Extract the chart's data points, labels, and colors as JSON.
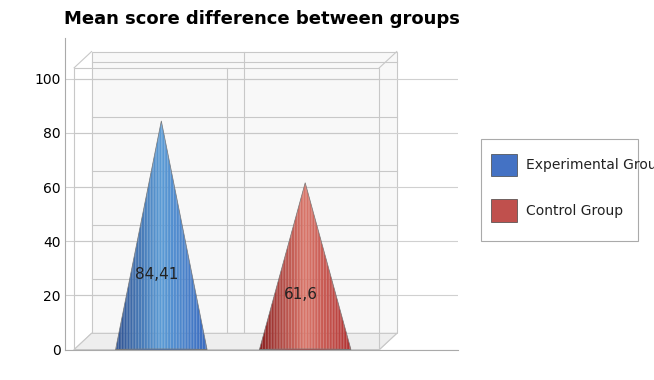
{
  "title": "Mean score difference between groups",
  "title_fontsize": 13,
  "title_fontweight": "bold",
  "categories": [
    "Experimental Group",
    "Control Group"
  ],
  "values": [
    84.41,
    61.6
  ],
  "labels": [
    "84,41",
    "61,6"
  ],
  "blue_left": "#3a6abf",
  "blue_center": "#5b9bd5",
  "blue_right": "#2e5090",
  "blue_base": "#4472b8",
  "red_left": "#b03030",
  "red_center": "#d9766a",
  "red_right": "#8b2020",
  "red_base": "#b84040",
  "legend_blue": "#4472C4",
  "legend_red": "#C0504D",
  "ylim_max": 115,
  "yticks": [
    0,
    20,
    40,
    60,
    80,
    100
  ],
  "bg_color": "#ffffff",
  "grid_color": "#d0d0d0",
  "label_fontsize": 11,
  "legend_fontsize": 10,
  "box_color": "#c8c8c8"
}
